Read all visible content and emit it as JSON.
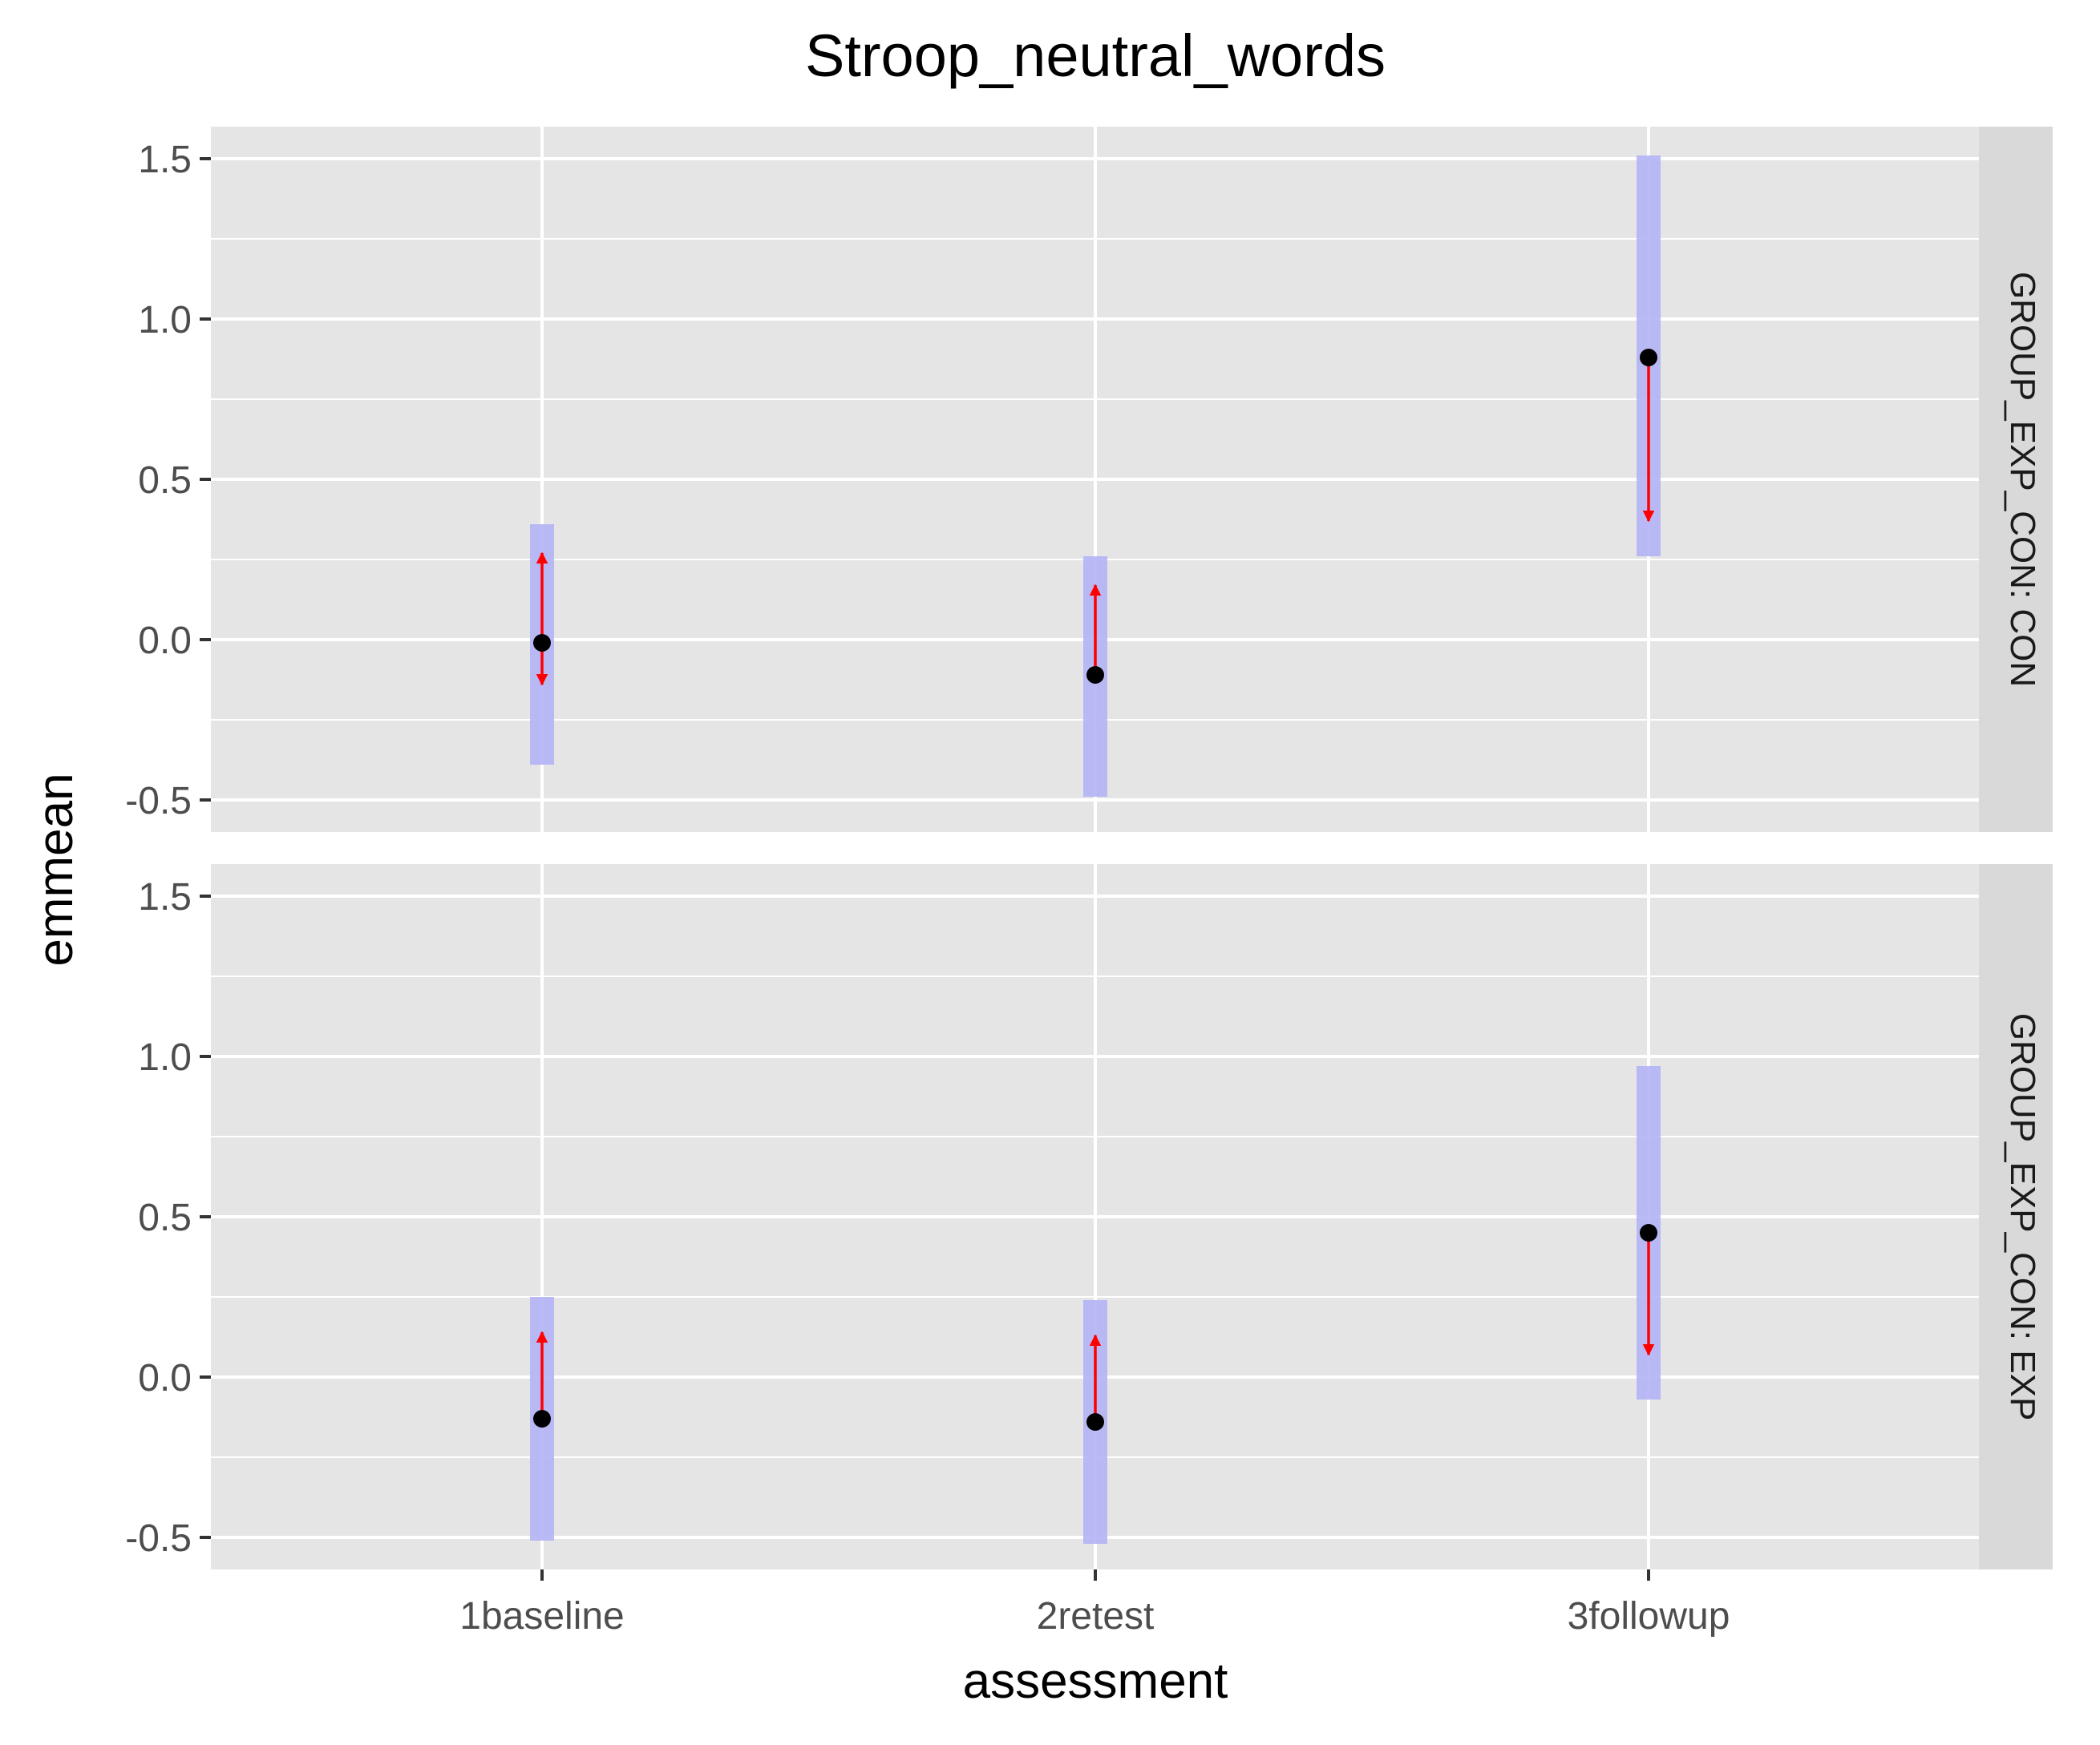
{
  "chart_data": {
    "type": "scatter",
    "title": "Stroop_neutral_words",
    "xlabel": "assessment",
    "ylabel": "emmean",
    "categories": [
      "1baseline",
      "2retest",
      "3followup"
    ],
    "ylim": [
      -0.6,
      1.6
    ],
    "yticks": [
      -0.5,
      0.0,
      0.5,
      1.0,
      1.5
    ],
    "ytick_labels": [
      "-0.5",
      "0.0",
      "0.5",
      "1.0",
      "1.5"
    ],
    "grid": true,
    "colors": {
      "panel_background": "#e5e5e5",
      "grid": "#ffffff",
      "strip_background": "#d9d9d9",
      "interval_band": "#b3b3f5",
      "arrow": "#ff0000",
      "point": "#000000"
    },
    "panels": [
      {
        "strip_label": "GROUP_EXP_CON: CON",
        "points": [
          {
            "x": "1baseline",
            "emmean": -0.01,
            "lower": -0.39,
            "upper": 0.36,
            "arrows": [
              0.27,
              -0.14
            ]
          },
          {
            "x": "2retest",
            "emmean": -0.11,
            "lower": -0.49,
            "upper": 0.26,
            "arrows": [
              0.17
            ]
          },
          {
            "x": "3followup",
            "emmean": 0.88,
            "lower": 0.26,
            "upper": 1.51,
            "arrows": [
              0.37
            ]
          }
        ]
      },
      {
        "strip_label": "GROUP_EXP_CON: EXP",
        "points": [
          {
            "x": "1baseline",
            "emmean": -0.13,
            "lower": -0.51,
            "upper": 0.25,
            "arrows": [
              0.14
            ]
          },
          {
            "x": "2retest",
            "emmean": -0.14,
            "lower": -0.52,
            "upper": 0.24,
            "arrows": [
              0.13
            ]
          },
          {
            "x": "3followup",
            "emmean": 0.45,
            "lower": -0.07,
            "upper": 0.97,
            "arrows": [
              0.07
            ]
          }
        ]
      }
    ]
  }
}
